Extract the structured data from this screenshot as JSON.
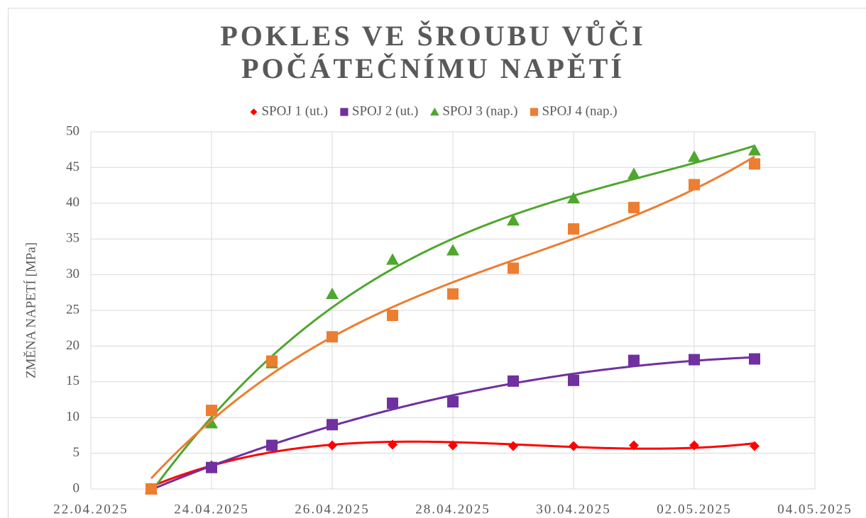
{
  "chart_data": {
    "type": "scatter",
    "title": "POKLES VE ŠROUBU VŮČI POČÁTEČNÍMU NAPĚTÍ",
    "y_label": "ZMĚNA NAPETÍ [MPa]",
    "x": [
      "23.04.2025",
      "24.04.2025",
      "25.04.2025",
      "26.04.2025",
      "27.04.2025",
      "28.04.2025",
      "29.04.2025",
      "30.04.2025",
      "01.05.2025",
      "02.05.2025",
      "03.05.2025"
    ],
    "series": [
      {
        "name": "SPOJ 1 (ut.)",
        "color": "#ff0000",
        "marker": "diamond",
        "values": [
          0,
          3.3,
          6.1,
          6.1,
          6.2,
          6.1,
          6.0,
          6.0,
          6.1,
          6.1,
          6.0
        ]
      },
      {
        "name": "SPOJ 2 (ut.)",
        "color": "#7030a0",
        "marker": "square",
        "values": [
          0,
          3.0,
          6.1,
          9.0,
          12.0,
          12.2,
          15.1,
          15.2,
          18.0,
          18.1,
          18.2
        ]
      },
      {
        "name": "SPOJ 3 (nap.)",
        "color": "#4ea72e",
        "marker": "triangle",
        "values": [
          0,
          9.2,
          17.6,
          27.3,
          32.1,
          33.4,
          37.6,
          40.7,
          44.1,
          46.5,
          47.4
        ]
      },
      {
        "name": "SPOJ 4 (nap.)",
        "color": "#ed7d31",
        "marker": "square",
        "values": [
          0,
          11.0,
          17.9,
          21.3,
          24.3,
          27.3,
          30.9,
          36.4,
          39.4,
          42.6,
          45.5
        ]
      }
    ],
    "xlim": [
      "22.04.2025",
      "04.05.2025"
    ],
    "xticks": [
      "22.04.2025",
      "24.04.2025",
      "26.04.2025",
      "28.04.2025",
      "30.04.2025",
      "02.05.2025",
      "04.05.2025"
    ],
    "ylim": [
      0,
      50
    ],
    "yticks": [
      0,
      5,
      10,
      15,
      20,
      25,
      30,
      35,
      40,
      45,
      50
    ],
    "grid": true,
    "legend": "top",
    "trendline": "polynomial",
    "trendline_order": 3
  }
}
